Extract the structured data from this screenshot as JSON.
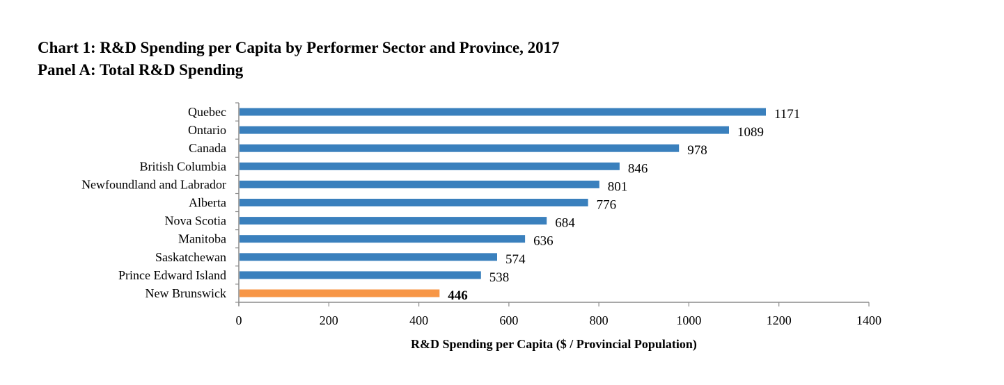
{
  "chart_data": {
    "type": "bar",
    "orientation": "horizontal",
    "title": "Chart 1: R&D Spending per Capita by Performer Sector and Province, 2017",
    "subtitle": "Panel A: Total R&D Spending",
    "categories": [
      "Quebec",
      "Ontario",
      "Canada",
      "British Columbia",
      "Newfoundland and Labrador",
      "Alberta",
      "Nova Scotia",
      "Manitoba",
      "Saskatchewan",
      "Prince Edward Island",
      "New Brunswick"
    ],
    "values": [
      1171,
      1089,
      978,
      846,
      801,
      776,
      684,
      636,
      574,
      538,
      446
    ],
    "data_labels": [
      "1171",
      "1089",
      "978",
      "846",
      "801",
      "776",
      "684",
      "636",
      "574",
      "538",
      "446"
    ],
    "highlight": "New Brunswick",
    "xlabel": "R&D Spending per Capita ($ / Provincial Population)",
    "ylabel": "",
    "xlim": [
      0,
      1400
    ],
    "xticks": [
      0,
      200,
      400,
      600,
      800,
      1000,
      1200,
      1400
    ],
    "xtick_labels": [
      "0",
      "200",
      "400",
      "600",
      "800",
      "1000",
      "1200",
      "1400"
    ],
    "grid": false,
    "legend": "none",
    "colors": {
      "default_bar": "#3a80bd",
      "highlight_bar": "#f79646",
      "axis": "#8c8c8c"
    }
  }
}
